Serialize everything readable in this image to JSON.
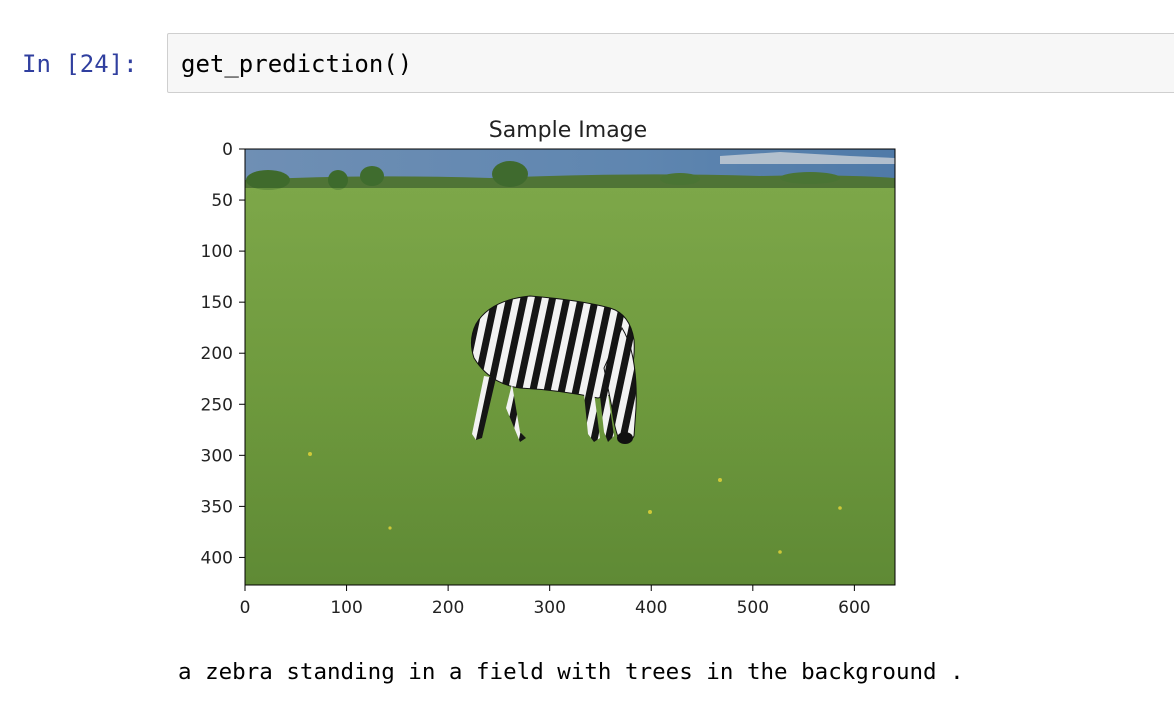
{
  "cell": {
    "prompt": "In [24]:",
    "code": "get_prediction()"
  },
  "figure": {
    "title": "Sample Image",
    "x_ticks": [
      "0",
      "100",
      "200",
      "300",
      "400",
      "500",
      "600"
    ],
    "y_ticks": [
      "0",
      "50",
      "100",
      "150",
      "200",
      "250",
      "300",
      "350",
      "400"
    ],
    "image_subject": "zebra grazing in a grassy field"
  },
  "output": {
    "caption": "a zebra standing in a field with trees in the background ."
  },
  "colors": {
    "prompt": "#303f9f",
    "cell_bg": "#f7f7f7",
    "cell_border": "#cfcfcf",
    "grass": "#6f9a3e",
    "sky": "#5f86b0"
  }
}
